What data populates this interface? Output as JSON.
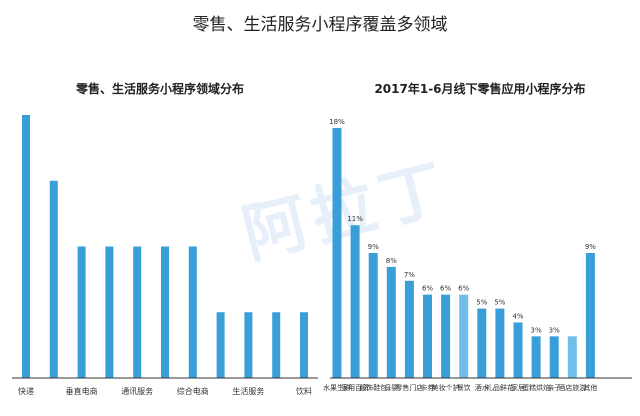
{
  "title": "零售、生活服务小程序覆盖多领域",
  "watermark": "阿拉丁",
  "colors": {
    "bar": "#3a9fd9",
    "bar_light": "#6fbfea",
    "axis": "#333333"
  },
  "chart_data": [
    {
      "type": "bar",
      "title": "零售、生活服务小程序领域分布",
      "categories": [
        "快递",
        "",
        "垂直电商",
        "",
        "通讯服务",
        "",
        "综合电商",
        "",
        "生活服务",
        "",
        "饮料"
      ],
      "values": [
        8,
        6,
        4,
        4,
        4,
        4,
        4,
        2,
        2,
        2,
        2
      ],
      "ylim": [
        0,
        8.4
      ]
    },
    {
      "type": "bar",
      "title": "2017年1-6月线下零售应用小程序分布",
      "categories": [
        "水果生鲜",
        "家用百货",
        "服饰鞋包",
        "母婴",
        "零售门店",
        "卡券",
        "美妆个护",
        "餐饮",
        "酒水",
        "礼品鲜花",
        "家居",
        "蛋糕烘焙",
        "亲子",
        "酒店旅游",
        "其他"
      ],
      "values": [
        18,
        11,
        9,
        8,
        7,
        6,
        6,
        6,
        5,
        5,
        4,
        3,
        3,
        3,
        9
      ],
      "labels": [
        "18%",
        "11%",
        "9%",
        "8%",
        "7%",
        "6%",
        "6%",
        "6%",
        "5%",
        "5%",
        "4%",
        "3%",
        "3%",
        "",
        "9%"
      ],
      "light_index": [
        7,
        13
      ],
      "ylim": [
        0,
        18.5
      ]
    }
  ]
}
